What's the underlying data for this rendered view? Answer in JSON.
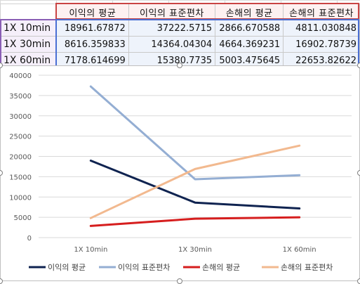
{
  "table": {
    "headers": [
      "이익의 평균",
      "이익의 표준편차",
      "손해의 평균",
      "손해의 표준편차"
    ],
    "rows": [
      {
        "label": "1X 10min",
        "values": [
          "18961.67872",
          "37222.5715",
          "2866.670588",
          "4811.030848"
        ]
      },
      {
        "label": "1X 30min",
        "values": [
          "8616.359833",
          "14364.04304",
          "4664.369231",
          "16902.78739"
        ]
      },
      {
        "label": "1X 60min",
        "values": [
          "7178.614699",
          "15380.7735",
          "5003.475645",
          "22653.82622"
        ]
      }
    ]
  },
  "chart_data": {
    "type": "line",
    "categories": [
      "1X 10min",
      "1X 30min",
      "1X 60min"
    ],
    "series": [
      {
        "name": "이익의 평균",
        "color": "#0f2350",
        "values": [
          18961.67872,
          8616.359833,
          7178.614699
        ]
      },
      {
        "name": "이익의 표준편차",
        "color": "#94aed3",
        "values": [
          37222.5715,
          14364.04304,
          15380.7735
        ]
      },
      {
        "name": "손해의 평균",
        "color": "#d61e1e",
        "values": [
          2866.670588,
          4664.369231,
          5003.475645
        ]
      },
      {
        "name": "손해의 표준편차",
        "color": "#f2b98f",
        "values": [
          4811.030848,
          16902.78739,
          22653.82622
        ]
      }
    ],
    "ylim": [
      0,
      40000
    ],
    "yticks": [
      0,
      5000,
      10000,
      15000,
      20000,
      25000,
      30000,
      35000,
      40000
    ],
    "grid": true,
    "legend": "bottom",
    "title": "",
    "xlabel": "",
    "ylabel": ""
  }
}
